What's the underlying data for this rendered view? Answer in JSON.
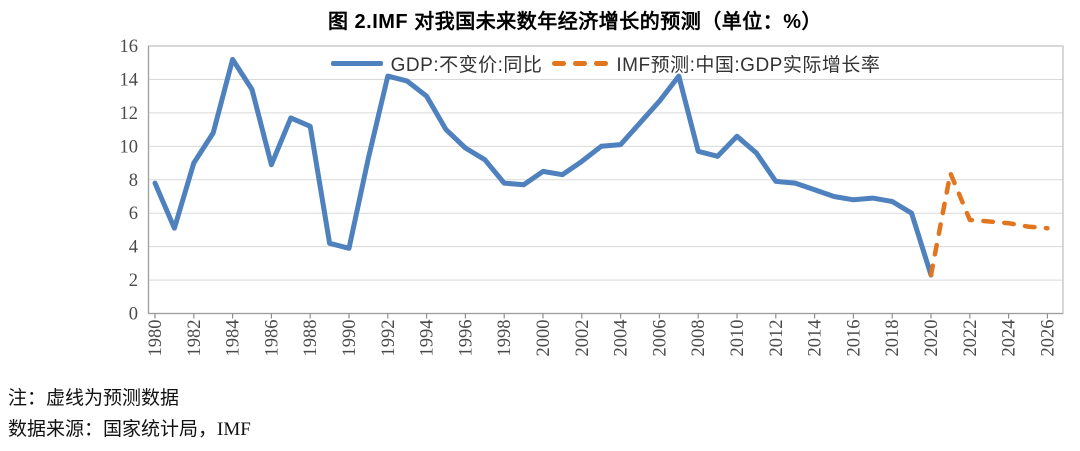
{
  "title": "图 2.IMF 对我国未来数年经济增长的预测（单位：%）",
  "notes": {
    "line1": "注：虚线为预测数据",
    "line2": "数据来源：国家统计局，IMF"
  },
  "chart_data": {
    "type": "line",
    "title": "图 2.IMF 对我国未来数年经济增长的预测（单位：%）",
    "unit": "%",
    "ylim": [
      0,
      16
    ],
    "yticks": [
      0,
      2,
      4,
      6,
      8,
      10,
      12,
      14,
      16
    ],
    "xticks": [
      1980,
      1982,
      1984,
      1986,
      1988,
      1990,
      1992,
      1994,
      1996,
      1998,
      2000,
      2002,
      2004,
      2006,
      2008,
      2010,
      2012,
      2014,
      2016,
      2018,
      2020,
      2022,
      2024,
      2026
    ],
    "grid": true,
    "legend_position": "top-center",
    "series": [
      {
        "name": "GDP:不变价:同比",
        "color": "#4E81BD",
        "line_style": "solid",
        "years": [
          1980,
          1981,
          1982,
          1983,
          1984,
          1985,
          1986,
          1987,
          1988,
          1989,
          1990,
          1991,
          1992,
          1993,
          1994,
          1995,
          1996,
          1997,
          1998,
          1999,
          2000,
          2001,
          2002,
          2003,
          2004,
          2005,
          2006,
          2007,
          2008,
          2009,
          2010,
          2011,
          2012,
          2013,
          2014,
          2015,
          2016,
          2017,
          2018,
          2019,
          2020
        ],
        "values": [
          7.8,
          5.1,
          9.0,
          10.8,
          15.2,
          13.4,
          8.9,
          11.7,
          11.2,
          4.2,
          3.9,
          9.3,
          14.2,
          13.9,
          13.0,
          11.0,
          9.9,
          9.2,
          7.8,
          7.7,
          8.5,
          8.3,
          9.1,
          10.0,
          10.1,
          11.4,
          12.7,
          14.2,
          9.7,
          9.4,
          10.6,
          9.6,
          7.9,
          7.8,
          7.4,
          7.0,
          6.8,
          6.9,
          6.7,
          6.0,
          2.3
        ]
      },
      {
        "name": "IMF预测:中国:GDP实际增长率",
        "color": "#E2751D",
        "line_style": "dashed",
        "years": [
          2020,
          2021,
          2022,
          2023,
          2024,
          2025,
          2026
        ],
        "values": [
          2.3,
          8.4,
          5.6,
          5.5,
          5.4,
          5.2,
          5.1
        ]
      }
    ]
  }
}
